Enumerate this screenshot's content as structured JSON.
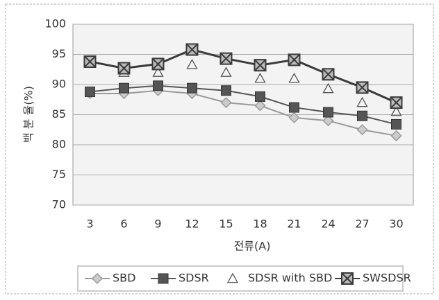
{
  "chart_data": {
    "type": "line",
    "x_label": "전류(A)",
    "y_label": "백 분 율(%)",
    "categories": [
      "3",
      "6",
      "9",
      "12",
      "15",
      "18",
      "21",
      "24",
      "27",
      "30"
    ],
    "series": [
      {
        "name": "SBD",
        "color": "#9a9a9a",
        "marker": "diamond",
        "line": true,
        "values": [
          88.5,
          88.5,
          89,
          88.5,
          87,
          86.5,
          84.5,
          84,
          82.5,
          81.5
        ]
      },
      {
        "name": "SDSR",
        "color": "#555555",
        "marker": "square",
        "line": true,
        "values": [
          88.8,
          89.4,
          89.8,
          89.4,
          89,
          88,
          86.2,
          85.4,
          84.8,
          83.4
        ]
      },
      {
        "name": "SDSR with SBD",
        "color": "#555555",
        "marker": "triangle",
        "line": false,
        "values": [
          93.5,
          92,
          92,
          93.3,
          92,
          91,
          91,
          89.3,
          87,
          85.5
        ]
      },
      {
        "name": "SWSDSR",
        "color": "#3a3a3a",
        "marker": "xsquare",
        "line": true,
        "values": [
          93.8,
          92.7,
          93.4,
          95.8,
          94.3,
          93.2,
          94.1,
          91.7,
          89.5,
          87
        ]
      }
    ],
    "ylim": [
      70,
      100
    ],
    "yticks": [
      70,
      75,
      80,
      85,
      90,
      95,
      100
    ],
    "grid": true,
    "legend": "bottom"
  }
}
